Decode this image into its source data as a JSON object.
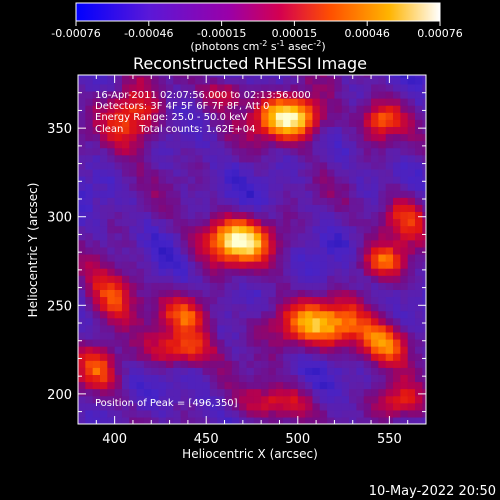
{
  "chart_data": {
    "type": "heatmap",
    "title": "Reconstructed RHESSI Image",
    "xlabel": "Heliocentric X (arcsec)",
    "ylabel": "Heliocentric Y (arcsec)",
    "xlim": [
      380,
      570
    ],
    "ylim": [
      183,
      380
    ],
    "xticks": [
      400,
      450,
      500,
      550
    ],
    "yticks": [
      200,
      250,
      300,
      350
    ],
    "colorbar": {
      "ticks": [
        "-0.00076",
        "-0.00046",
        "-0.00015",
        "0.00015",
        "0.00046",
        "0.00076"
      ],
      "unit_text": "(photons cm",
      "unit_sup1": "-2",
      "unit_mid": " s",
      "unit_sup2": "-1",
      "unit_end": " asec",
      "unit_sup3": "-2",
      "unit_close": ")",
      "colors": [
        "#0000ff",
        "#6a1fc6",
        "#b4008c",
        "#e00038",
        "#ff6a00",
        "#ffb400",
        "#ffffff"
      ]
    },
    "annotations": [
      "16-Apr-2011 02:07:56.000 to 02:13:56.000",
      "Detectors: 3F 4F 5F 6F 7F 8F, Att 0",
      "Energy Range: 25.0 - 50.0 keV",
      "Clean     Total counts: 1.62E+04"
    ],
    "peak_label": "Position of Peak = [496,350]",
    "peak": [
      496,
      350
    ],
    "sources": [
      {
        "x": 496,
        "y": 356,
        "sx": 13,
        "sy": 9,
        "amp": 1.0
      },
      {
        "x": 467,
        "y": 287,
        "sx": 14,
        "sy": 9,
        "amp": 0.92
      },
      {
        "x": 410,
        "y": 355,
        "sx": 11,
        "sy": 13,
        "amp": 0.6
      },
      {
        "x": 545,
        "y": 355,
        "sx": 8,
        "sy": 8,
        "amp": 0.55
      },
      {
        "x": 558,
        "y": 300,
        "sx": 9,
        "sy": 10,
        "amp": 0.55
      },
      {
        "x": 545,
        "y": 275,
        "sx": 9,
        "sy": 7,
        "amp": 0.5
      },
      {
        "x": 512,
        "y": 240,
        "sx": 22,
        "sy": 9,
        "amp": 0.7
      },
      {
        "x": 548,
        "y": 228,
        "sx": 10,
        "sy": 8,
        "amp": 0.62
      },
      {
        "x": 440,
        "y": 245,
        "sx": 10,
        "sy": 8,
        "amp": 0.48
      },
      {
        "x": 398,
        "y": 255,
        "sx": 10,
        "sy": 12,
        "amp": 0.55
      },
      {
        "x": 435,
        "y": 225,
        "sx": 14,
        "sy": 7,
        "amp": 0.55
      },
      {
        "x": 390,
        "y": 215,
        "sx": 9,
        "sy": 9,
        "amp": 0.45
      },
      {
        "x": 490,
        "y": 195,
        "sx": 13,
        "sy": 7,
        "amp": 0.45
      },
      {
        "x": 555,
        "y": 195,
        "sx": 10,
        "sy": 7,
        "amp": 0.45
      },
      {
        "x": 460,
        "y": 370,
        "sx": 8,
        "sy": 6,
        "amp": 0.4
      }
    ]
  },
  "footer": {
    "date": "10-May-2022 20:50"
  }
}
